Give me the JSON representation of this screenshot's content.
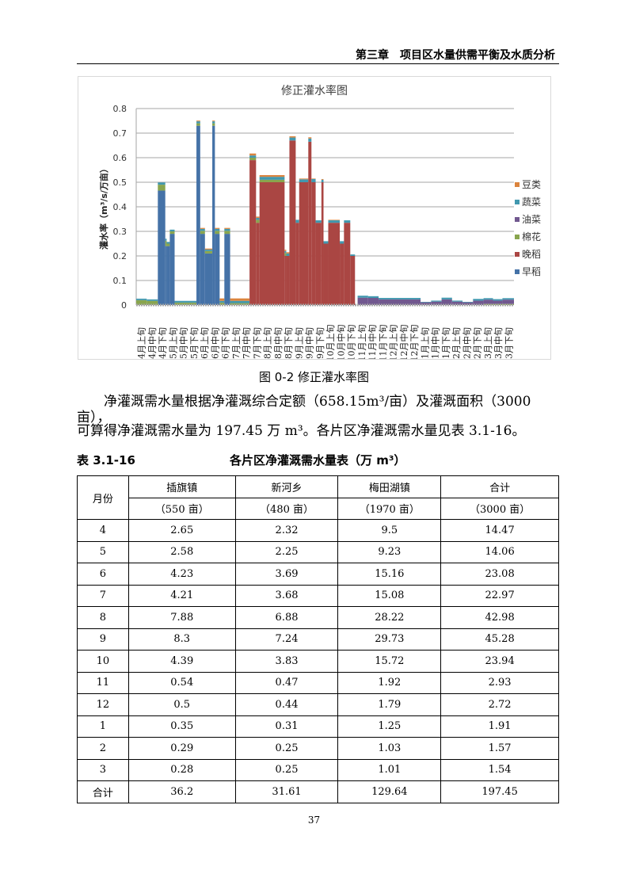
{
  "header": {
    "chapter": "第三章　项目区水量供需平衡及水质分析"
  },
  "chart_data": {
    "type": "bar",
    "stacked": true,
    "title": "修正灌水率图",
    "ylabel": "灌水率（m³/s/万亩）",
    "xlabel": "",
    "ylim": [
      0,
      0.8
    ],
    "yticks": [
      "0",
      "0.1",
      "0.2",
      "0.3",
      "0.4",
      "0.5",
      "0.6",
      "0.7",
      "0.8"
    ],
    "grid": true,
    "legend_position": "right",
    "categories": [
      "4月上旬",
      "4月中旬",
      "4月下旬",
      "5月上旬",
      "5月中旬",
      "5月下旬",
      "6月上旬",
      "6月中旬",
      "6月下旬",
      "7月上旬",
      "7月中旬",
      "7月下旬",
      "8月上旬",
      "8月中旬",
      "8月下旬",
      "9月上旬",
      "9月中旬",
      "9月下旬",
      "10月上旬",
      "10月中旬",
      "10月下旬",
      "11月上旬",
      "11月中旬",
      "11月下旬",
      "12月上旬",
      "12月中旬",
      "12月下旬",
      "1月上旬",
      "1月中旬",
      "1月下旬",
      "2月上旬",
      "2月中旬",
      "2月下旬",
      "3月上旬",
      "3月中旬",
      "3月下旬"
    ],
    "series": [
      {
        "name": "早稻",
        "color": "#4572A7"
      },
      {
        "name": "晚稻",
        "color": "#AA4643"
      },
      {
        "name": "棉花",
        "color": "#89A54E"
      },
      {
        "name": "油菜",
        "color": "#71588F"
      },
      {
        "name": "蔬菜",
        "color": "#4198AF"
      },
      {
        "name": "豆类",
        "color": "#DB843D"
      }
    ],
    "legend_order": [
      "豆类",
      "蔬菜",
      "油菜",
      "棉花",
      "晚稻",
      "早稻"
    ],
    "segments_columns": [
      "from_period",
      "to_period",
      "早稻",
      "晚稻",
      "棉花",
      "油菜",
      "蔬菜",
      "豆类"
    ],
    "segments": [
      [
        0,
        1,
        0,
        0,
        0.02,
        0,
        0.006,
        0
      ],
      [
        1,
        2.06,
        0,
        0,
        0.017,
        0,
        0.006,
        0
      ],
      [
        2.06,
        2.77,
        0.466,
        0,
        0.024,
        0,
        0.009,
        0
      ],
      [
        2.77,
        2.9,
        0.24,
        0,
        0.022,
        0,
        0.008,
        0
      ],
      [
        2.9,
        3.2,
        0.24,
        0,
        0.01,
        0,
        0.007,
        0
      ],
      [
        3.2,
        3.66,
        0.29,
        0,
        0.01,
        0,
        0.007,
        0
      ],
      [
        3.66,
        5.74,
        0,
        0,
        0.01,
        0,
        0.007,
        0
      ],
      [
        5.74,
        6.1,
        0.73,
        0,
        0.01,
        0,
        0.008,
        0.003
      ],
      [
        6.1,
        6.55,
        0.29,
        0,
        0.012,
        0,
        0.008,
        0.004
      ],
      [
        6.55,
        7.25,
        0.21,
        0,
        0.01,
        0,
        0.006,
        0.004
      ],
      [
        7.25,
        7.5,
        0.73,
        0,
        0.01,
        0,
        0.008,
        0.003
      ],
      [
        7.5,
        7.95,
        0.29,
        0,
        0.012,
        0,
        0.008,
        0.004
      ],
      [
        7.95,
        8.4,
        0,
        0,
        0.01,
        0,
        0.007,
        0.01
      ],
      [
        8.4,
        8.95,
        0.29,
        0,
        0.012,
        0,
        0.008,
        0.004
      ],
      [
        8.95,
        10.8,
        0,
        0,
        0.008,
        0,
        0.009,
        0.01
      ],
      [
        10.8,
        11.42,
        0,
        0.59,
        0.01,
        0,
        0.009,
        0.008
      ],
      [
        11.42,
        11.75,
        0,
        0.335,
        0.012,
        0,
        0.008,
        0.005
      ],
      [
        11.75,
        14.14,
        0,
        0.5,
        0.01,
        0,
        0.012,
        0.007
      ],
      [
        14.14,
        14.3,
        0,
        0.2,
        0.012,
        0,
        0.008,
        0.005
      ],
      [
        14.3,
        14.6,
        0,
        0.2,
        0,
        0,
        0.01,
        0.005
      ],
      [
        14.6,
        15.2,
        0,
        0.67,
        0,
        0,
        0.012,
        0.005
      ],
      [
        15.2,
        15.53,
        0,
        0.335,
        0,
        0,
        0.012,
        0
      ],
      [
        15.53,
        16.4,
        0,
        0.5,
        0,
        0,
        0.012,
        0.003
      ],
      [
        16.4,
        16.7,
        0,
        0.665,
        0,
        0,
        0.013,
        0.005
      ],
      [
        16.7,
        17.1,
        0,
        0.5,
        0,
        0,
        0.013,
        0.002
      ],
      [
        17.1,
        17.65,
        0,
        0.335,
        0,
        0,
        0.01,
        0
      ],
      [
        17.65,
        17.85,
        0,
        0.5,
        0,
        0,
        0.01,
        0.003
      ],
      [
        17.85,
        18.3,
        0,
        0.25,
        0,
        0,
        0.01,
        0
      ],
      [
        18.3,
        19.4,
        0,
        0.335,
        0,
        0,
        0.01,
        0.002
      ],
      [
        19.4,
        19.8,
        0,
        0.25,
        0,
        0,
        0.01,
        0
      ],
      [
        19.8,
        20.4,
        0,
        0.335,
        0,
        0,
        0.01,
        0
      ],
      [
        20.4,
        20.85,
        0,
        0.2,
        0,
        0,
        0.006,
        0
      ],
      [
        21.1,
        22.1,
        0,
        0,
        0,
        0.03,
        0.008,
        0
      ],
      [
        22.1,
        23.1,
        0,
        0,
        0,
        0.029,
        0.007,
        0
      ],
      [
        23.1,
        27.1,
        0,
        0,
        0,
        0.023,
        0.006,
        0
      ],
      [
        27.1,
        28.1,
        0,
        0,
        0,
        0.011,
        0.002,
        0
      ],
      [
        28.1,
        29.1,
        0,
        0,
        0,
        0.014,
        0.004,
        0
      ],
      [
        29.1,
        30.1,
        0,
        0,
        0,
        0.023,
        0.007,
        0
      ],
      [
        30.1,
        31.1,
        0,
        0,
        0,
        0.014,
        0.004,
        0
      ],
      [
        31.1,
        32.1,
        0,
        0,
        0,
        0.011,
        0.002,
        0
      ],
      [
        32.1,
        33.1,
        0,
        0,
        0,
        0.018,
        0.007,
        0
      ],
      [
        33.1,
        34,
        0,
        0,
        0.005,
        0.017,
        0.006,
        0
      ],
      [
        34,
        34.9,
        0,
        0,
        0.005,
        0.013,
        0.006,
        0
      ],
      [
        34.9,
        36,
        0,
        0,
        0.005,
        0.017,
        0.006,
        0
      ]
    ]
  },
  "figure_caption": "图  0-2    修正灌水率图",
  "paragraph": {
    "line1": "净灌溉需水量根据净灌溉综合定额（658.15m³/亩）及灌溉面积（3000 亩），",
    "line2": "可算得净灌溉需水量为 197.45 万 m³。各片区净灌溉需水量见表  3.1-16。"
  },
  "table": {
    "number": "表  3.1-16",
    "title": "各片区净灌溉需水量表（万 m³）",
    "month_header": "月份",
    "columns": [
      {
        "name": "插旗镇",
        "area": "（550 亩）"
      },
      {
        "name": "新河乡",
        "area": "（480 亩）"
      },
      {
        "name": "梅田湖镇",
        "area": "（1970 亩）"
      },
      {
        "name": "合计",
        "area": "（3000 亩）"
      }
    ],
    "rows": [
      [
        "4",
        "2.65",
        "2.32",
        "9.5",
        "14.47"
      ],
      [
        "5",
        "2.58",
        "2.25",
        "9.23",
        "14.06"
      ],
      [
        "6",
        "4.23",
        "3.69",
        "15.16",
        "23.08"
      ],
      [
        "7",
        "4.21",
        "3.68",
        "15.08",
        "22.97"
      ],
      [
        "8",
        "7.88",
        "6.88",
        "28.22",
        "42.98"
      ],
      [
        "9",
        "8.3",
        "7.24",
        "29.73",
        "45.28"
      ],
      [
        "10",
        "4.39",
        "3.83",
        "15.72",
        "23.94"
      ],
      [
        "11",
        "0.54",
        "0.47",
        "1.92",
        "2.93"
      ],
      [
        "12",
        "0.5",
        "0.44",
        "1.79",
        "2.72"
      ],
      [
        "1",
        "0.35",
        "0.31",
        "1.25",
        "1.91"
      ],
      [
        "2",
        "0.29",
        "0.25",
        "1.03",
        "1.57"
      ],
      [
        "3",
        "0.28",
        "0.25",
        "1.01",
        "1.54"
      ],
      [
        "合计",
        "36.2",
        "31.61",
        "129.64",
        "197.45"
      ]
    ]
  },
  "page_number": "37"
}
